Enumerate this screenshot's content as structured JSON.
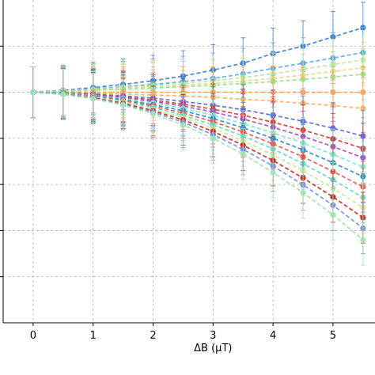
{
  "chart_data": {
    "type": "scatter",
    "title": "",
    "xlabel": "ΔB (μT)",
    "ylabel": "",
    "grid": true,
    "grid_style": "dashed",
    "xlim": [
      -0.5,
      5.7
    ],
    "ylim": [
      -5,
      2
    ],
    "x_ticks": [
      0,
      1,
      2,
      3,
      4,
      5
    ],
    "x_tick_labels": [
      "0",
      "1",
      "2",
      "3",
      "4",
      "5"
    ],
    "y_ticks": [
      -4,
      -3,
      -2,
      -1,
      0,
      1
    ],
    "x": [
      0,
      0.5,
      1,
      1.5,
      2,
      2.5,
      3,
      3.5,
      4,
      4.5,
      5,
      5.5
    ],
    "error_bar": 0.55,
    "fit_line_style": "dashed",
    "series": [
      {
        "color": "#3b7fd0",
        "values": [
          0,
          0.04,
          0.1,
          0.17,
          0.25,
          0.35,
          0.48,
          0.63,
          0.84,
          1.0,
          1.2,
          1.4
        ]
      },
      {
        "color": "#5aaee8",
        "values": [
          0,
          0.03,
          0.07,
          0.12,
          0.17,
          0.23,
          0.3,
          0.4,
          0.52,
          0.63,
          0.74,
          0.86
        ]
      },
      {
        "color": "#bfe6a8",
        "values": [
          0,
          0.03,
          0.06,
          0.1,
          0.14,
          0.19,
          0.25,
          0.32,
          0.4,
          0.5,
          0.6,
          0.7
        ]
      },
      {
        "color": "#e8d98a",
        "values": [
          0,
          0.02,
          0.05,
          0.08,
          0.11,
          0.15,
          0.19,
          0.24,
          0.3,
          0.37,
          0.45,
          0.53
        ]
      },
      {
        "color": "#9ee08f",
        "values": [
          0,
          0.02,
          0.04,
          0.06,
          0.09,
          0.12,
          0.15,
          0.19,
          0.23,
          0.28,
          0.33,
          0.39
        ]
      },
      {
        "color": "#f4a261",
        "values": [
          0,
          0.0,
          0.0,
          0.0,
          0.0,
          0.0,
          0.0,
          0.0,
          0.0,
          0.0,
          0.0,
          0.0
        ]
      },
      {
        "color": "#f7b267",
        "values": [
          0,
          -0.01,
          -0.02,
          -0.04,
          -0.06,
          -0.08,
          -0.11,
          -0.15,
          -0.19,
          -0.24,
          -0.29,
          -0.35
        ]
      },
      {
        "color": "#5b6fd6",
        "values": [
          0,
          -0.01,
          -0.04,
          -0.08,
          -0.13,
          -0.2,
          -0.28,
          -0.38,
          -0.5,
          -0.63,
          -0.78,
          -0.95
        ]
      },
      {
        "color": "#d63c2f",
        "values": [
          0,
          -0.02,
          -0.05,
          -0.1,
          -0.17,
          -0.26,
          -0.37,
          -0.5,
          -0.65,
          -0.82,
          -1.01,
          -1.22
        ]
      },
      {
        "color": "#a54fc9",
        "values": [
          0,
          -0.02,
          -0.06,
          -0.12,
          -0.2,
          -0.3,
          -0.43,
          -0.58,
          -0.76,
          -0.96,
          -1.18,
          -1.42
        ]
      },
      {
        "color": "#7fe8d0",
        "values": [
          0,
          -0.02,
          -0.07,
          -0.14,
          -0.23,
          -0.35,
          -0.5,
          -0.68,
          -0.88,
          -1.1,
          -1.35,
          -1.62
        ]
      },
      {
        "color": "#2f8fc4",
        "values": [
          0,
          -0.03,
          -0.08,
          -0.16,
          -0.27,
          -0.4,
          -0.57,
          -0.77,
          -1.0,
          -1.25,
          -1.53,
          -1.83
        ]
      },
      {
        "color": "#e85a4f",
        "values": [
          0,
          -0.03,
          -0.09,
          -0.18,
          -0.3,
          -0.45,
          -0.64,
          -0.86,
          -1.12,
          -1.4,
          -1.72,
          -2.05
        ]
      },
      {
        "color": "#68d9c0",
        "values": [
          0,
          -0.03,
          -0.1,
          -0.2,
          -0.33,
          -0.5,
          -0.71,
          -0.95,
          -1.23,
          -1.55,
          -1.9,
          -2.28
        ]
      },
      {
        "color": "#c9e89a",
        "values": [
          0,
          -0.04,
          -0.11,
          -0.22,
          -0.37,
          -0.55,
          -0.78,
          -1.05,
          -1.36,
          -1.7,
          -2.08,
          -2.5
        ]
      },
      {
        "color": "#cc2a1f",
        "values": [
          0,
          -0.04,
          -0.12,
          -0.24,
          -0.4,
          -0.6,
          -0.85,
          -1.15,
          -1.48,
          -1.86,
          -2.27,
          -2.72
        ]
      },
      {
        "color": "#7a8ed8",
        "values": [
          0,
          -0.04,
          -0.13,
          -0.26,
          -0.43,
          -0.65,
          -0.92,
          -1.24,
          -1.6,
          -2.01,
          -2.45,
          -2.95
        ]
      },
      {
        "color": "#9fe4b0",
        "values": [
          0,
          -0.05,
          -0.14,
          -0.28,
          -0.47,
          -0.71,
          -1.0,
          -1.34,
          -1.74,
          -2.18,
          -2.66,
          -3.2
        ]
      }
    ]
  }
}
